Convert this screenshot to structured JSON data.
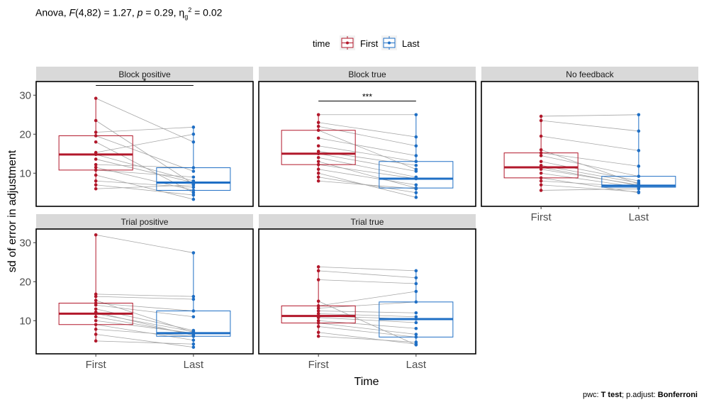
{
  "subtitle": {
    "test": "Anova,",
    "stat": "F",
    "df": "(4,82) = 1.27,",
    "p_label": "p",
    "p_value": "= 0.29,",
    "eta": "η",
    "eta_sub": "g",
    "eta_sup": "2",
    "eta_value": "= 0.02"
  },
  "caption": {
    "pwc_label": "pwc:",
    "pwc_value": "T test",
    "sep": ";",
    "adjust_label": "p.adjust:",
    "adjust_value": "Bonferroni"
  },
  "chart_data": {
    "type": "boxplot",
    "xlabel": "Time",
    "ylabel": "sd of error in adjustment",
    "ylim": [
      1.5,
      33.5
    ],
    "yticks": [
      10,
      20,
      30
    ],
    "x_categories": [
      "First",
      "Last"
    ],
    "legend": {
      "title": "time",
      "position": "top",
      "entries": [
        "First",
        "Last"
      ]
    },
    "colors": {
      "First": "#B2182B",
      "Last": "#1F6FC5",
      "lines": "#A6A6A6",
      "strip": "#D9D9D9"
    },
    "grid": false,
    "panels": [
      {
        "name": "Block positive",
        "first": {
          "q1": 10.8,
          "median": 14.8,
          "q3": 19.6,
          "whisker_low": 6.0,
          "whisker_high": 29.2,
          "points": [
            6.0,
            7.0,
            8.0,
            9.5,
            10.8,
            11.5,
            12.2,
            13.6,
            14.8,
            15.3,
            18.0,
            19.6,
            20.5,
            23.5,
            29.2
          ]
        },
        "last": {
          "q1": 5.6,
          "median": 7.6,
          "q3": 11.4,
          "whisker_low": 3.3,
          "whisker_high": 21.8,
          "points": [
            7.0,
            4.4,
            6.4,
            3.3,
            9.0,
            5.6,
            11.4,
            7.6,
            8.0,
            20.0,
            5.0,
            10.5,
            21.8,
            7.2,
            18.0
          ]
        },
        "significance": {
          "label": "*",
          "y": 32.5
        }
      },
      {
        "name": "Block true",
        "first": {
          "q1": 12.2,
          "median": 15.0,
          "q3": 21.0,
          "whisker_low": 8.0,
          "whisker_high": 25.0,
          "points": [
            8.0,
            9.0,
            10.0,
            11.0,
            12.2,
            13.0,
            14.0,
            15.0,
            15.6,
            17.0,
            19.0,
            21.0,
            22.0,
            23.0,
            25.0
          ]
        },
        "last": {
          "q1": 6.2,
          "median": 8.6,
          "q3": 13.0,
          "whisker_low": 3.8,
          "whisker_high": 25.0,
          "points": [
            6.0,
            5.0,
            3.8,
            7.0,
            8.6,
            6.2,
            9.0,
            10.5,
            12.0,
            13.0,
            14.5,
            11.0,
            17.0,
            19.3,
            25.0
          ]
        },
        "significance": {
          "label": "***",
          "y": 28.5
        }
      },
      {
        "name": "No feedback",
        "first": {
          "q1": 8.8,
          "median": 11.5,
          "q3": 15.2,
          "whisker_low": 5.6,
          "whisker_high": 24.6,
          "points": [
            5.6,
            7.0,
            8.0,
            8.8,
            10.0,
            11.0,
            11.5,
            12.0,
            13.0,
            14.5,
            15.2,
            16.0,
            19.5,
            23.5,
            24.6
          ]
        },
        "last": {
          "q1": 6.4,
          "median": 6.8,
          "q3": 9.2,
          "whisker_low": 5.0,
          "whisker_high": 25.0,
          "points": [
            6.0,
            5.2,
            6.5,
            5.0,
            6.4,
            7.0,
            6.8,
            7.5,
            8.0,
            9.2,
            11.8,
            7.2,
            15.8,
            20.8,
            25.0
          ]
        },
        "significance": null
      },
      {
        "name": "Trial positive",
        "first": {
          "q1": 9.0,
          "median": 11.8,
          "q3": 14.5,
          "whisker_low": 4.8,
          "whisker_high": 32.0,
          "points": [
            4.8,
            6.5,
            7.8,
            9.0,
            10.0,
            11.0,
            11.8,
            12.2,
            13.0,
            14.0,
            14.5,
            15.2,
            16.2,
            16.8,
            32.0
          ]
        },
        "last": {
          "q1": 6.0,
          "median": 6.8,
          "q3": 12.5,
          "whisker_low": 3.2,
          "whisker_high": 27.4,
          "points": [
            4.0,
            3.2,
            6.0,
            5.0,
            6.8,
            6.5,
            7.2,
            6.2,
            7.5,
            11.0,
            12.5,
            7.0,
            15.5,
            16.2,
            27.4
          ]
        },
        "significance": null
      },
      {
        "name": "Trial true",
        "first": {
          "q1": 9.4,
          "median": 11.2,
          "q3": 13.8,
          "whisker_low": 6.0,
          "whisker_high": 23.8,
          "points": [
            6.0,
            7.0,
            8.5,
            9.4,
            10.0,
            10.8,
            11.2,
            11.8,
            12.5,
            13.2,
            13.8,
            15.0,
            20.5,
            22.8,
            23.8
          ]
        },
        "last": {
          "q1": 5.8,
          "median": 10.4,
          "q3": 14.8,
          "whisker_low": 3.8,
          "whisker_high": 22.8,
          "points": [
            4.5,
            4.0,
            5.8,
            6.5,
            8.0,
            9.5,
            10.4,
            11.0,
            12.0,
            14.8,
            17.5,
            3.8,
            19.5,
            21.0,
            22.8
          ]
        },
        "significance": null
      }
    ]
  }
}
